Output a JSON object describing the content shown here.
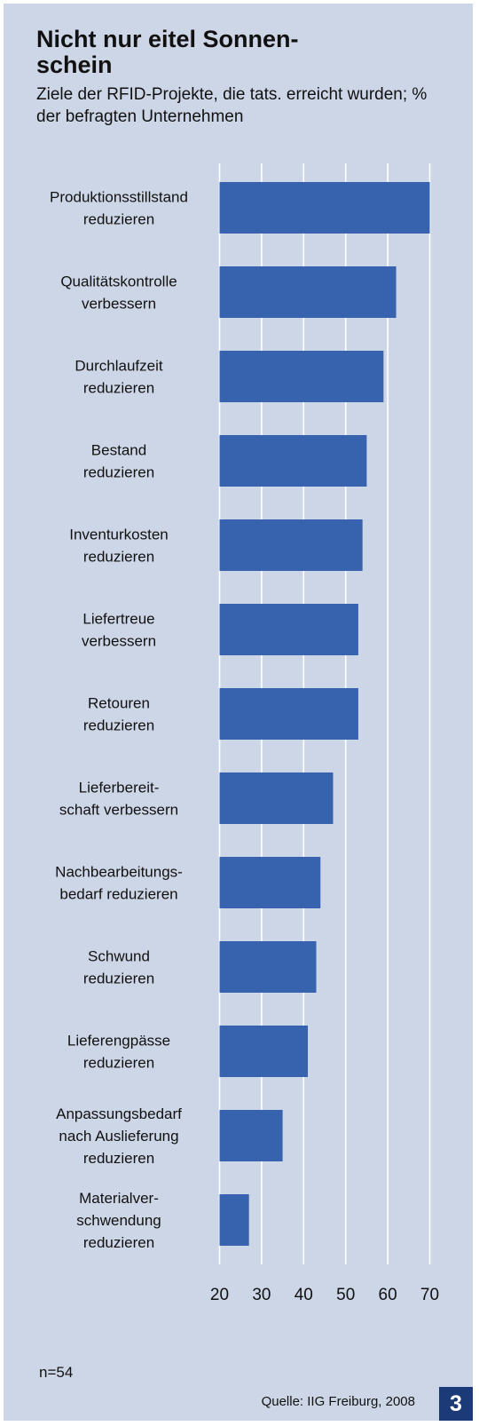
{
  "title": "Nicht nur eitel Sonnen-\nschein",
  "subtitle": "Ziele der RFID-Projekte, die tats. erreicht wurden; % der befragten Unternehmen",
  "sample_size": "n=54",
  "source": "Quelle: IIG Freiburg, 2008",
  "page_number": "3",
  "colors": {
    "background": "#cdd6e6",
    "bar": "#3762ad",
    "gridline": "#ffffff",
    "badge": "#1d3a78"
  },
  "chart_data": {
    "type": "bar",
    "orientation": "horizontal",
    "title": "Nicht nur eitel Sonnenschein",
    "subtitle": "Ziele der RFID-Projekte, die tats. erreicht wurden; % der befragten Unternehmen",
    "xlabel": "",
    "ylabel": "",
    "categories": [
      [
        "Produktionsstillstand",
        "reduzieren"
      ],
      [
        "Qualitätskontrolle",
        "verbessern"
      ],
      [
        "Durchlaufzeit",
        "reduzieren"
      ],
      [
        "Bestand",
        "reduzieren"
      ],
      [
        "Inventurkosten",
        "reduzieren"
      ],
      [
        "Liefertreue",
        "verbessern"
      ],
      [
        "Retouren",
        "reduzieren"
      ],
      [
        "Lieferbereit-",
        "schaft verbessern"
      ],
      [
        "Nachbearbeitungs-",
        "bedarf reduzieren"
      ],
      [
        "Schwund",
        "reduzieren"
      ],
      [
        "Lieferengpässe",
        "reduzieren"
      ],
      [
        "Anpassungsbedarf",
        "nach Auslieferung",
        "reduzieren"
      ],
      [
        "Materialver-",
        "schwendung",
        "reduzieren"
      ]
    ],
    "values": [
      70,
      62,
      59,
      55,
      54,
      53,
      53,
      47,
      44,
      43,
      41,
      35,
      27
    ],
    "xlim": [
      20,
      70
    ],
    "xticks": [
      20,
      30,
      40,
      50,
      60,
      70
    ],
    "grid": true,
    "legend": "none"
  }
}
